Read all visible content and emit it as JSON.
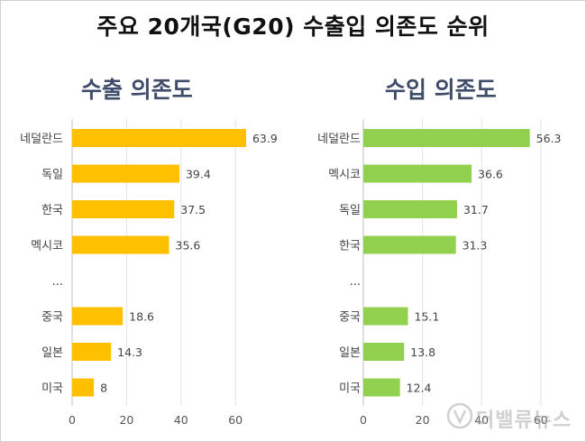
{
  "title": "주요 20개국(G20) 수출입 의존도 순위",
  "watermark": "더밸류뉴스",
  "colors": {
    "export_bar": "#FFC000",
    "import_bar": "#92D050"
  },
  "chart_data": [
    {
      "type": "bar",
      "orientation": "horizontal",
      "title": "수출 의존도",
      "categories": [
        "네덜란드",
        "독일",
        "한국",
        "멕시코",
        "...",
        "중국",
        "일본",
        "미국"
      ],
      "values": [
        63.9,
        39.4,
        37.5,
        35.6,
        null,
        18.6,
        14.3,
        8
      ],
      "value_labels": [
        "63.9",
        "39.4",
        "37.5",
        "35.6",
        "",
        "18.6",
        "14.3",
        "8"
      ],
      "xlim": [
        0,
        70
      ],
      "xticks": [
        0,
        20,
        40,
        60
      ],
      "grid": true
    },
    {
      "type": "bar",
      "orientation": "horizontal",
      "title": "수입 의존도",
      "categories": [
        "네덜란드",
        "멕시코",
        "독일",
        "한국",
        "...",
        "중국",
        "일본",
        "미국"
      ],
      "values": [
        56.3,
        36.6,
        31.7,
        31.3,
        null,
        15.1,
        13.8,
        12.4
      ],
      "value_labels": [
        "56.3",
        "36.6",
        "31.7",
        "31.3",
        "",
        "15.1",
        "13.8",
        "12.4"
      ],
      "xlim": [
        0,
        70
      ],
      "xticks": [
        0,
        20,
        40,
        60
      ],
      "grid": true
    }
  ]
}
